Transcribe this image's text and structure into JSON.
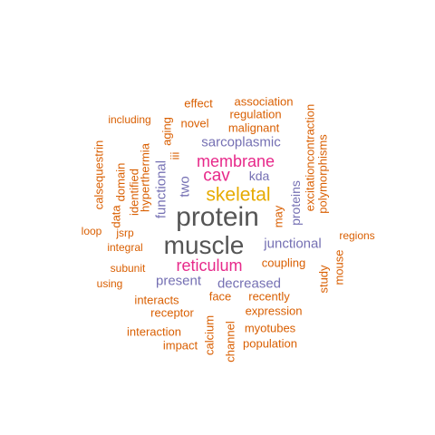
{
  "words": {
    "protein": "protein",
    "muscle": "muscle",
    "skeletal": "skeletal",
    "reticulum": "reticulum",
    "membrane": "membrane",
    "cav": "cav",
    "sarcoplasmic": "sarcoplasmic",
    "functional": "functional",
    "junctional": "junctional",
    "decreased": "decreased",
    "present": "present",
    "kda": "kda",
    "two": "two",
    "proteins": "proteins",
    "may": "may",
    "effect": "effect",
    "association": "association",
    "regulation": "regulation",
    "novel": "novel",
    "malignant": "malignant",
    "including": "including",
    "calsequestrin": "calsequestrin",
    "data": "data",
    "domain": "domain",
    "identified": "identified",
    "hyperthermia": "hyperthermia",
    "aging": "aging",
    "iii": "iii",
    "excitationcontraction": "excitationcontraction",
    "polymorphisms": "polymorphisms",
    "jsrp": "jsrp",
    "loop": "loop",
    "integral": "integral",
    "regions": "regions",
    "coupling": "coupling",
    "mouse": "mouse",
    "study": "study",
    "subunit": "subunit",
    "using": "using",
    "interacts": "interacts",
    "face": "face",
    "recently": "recently",
    "receptor": "receptor",
    "expression": "expression",
    "calcium": "calcium",
    "channel": "channel",
    "myotubes": "myotubes",
    "interaction": "interaction",
    "impact": "impact",
    "population": "population"
  },
  "colors": {
    "orange": "#d95f02",
    "purple": "#7570b3",
    "pink": "#e7298a",
    "gold": "#e6ab02",
    "gray": "#555555"
  }
}
